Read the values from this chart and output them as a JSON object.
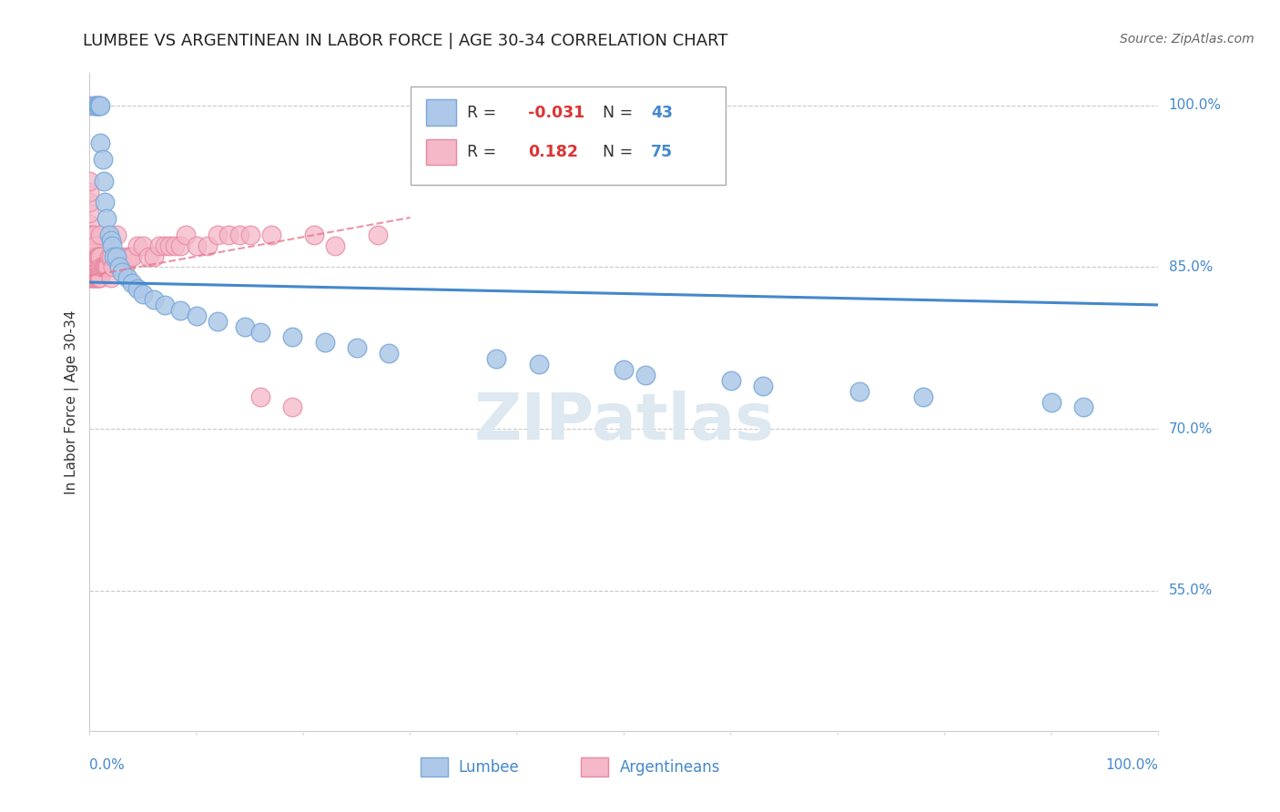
{
  "title": "LUMBEE VS ARGENTINEAN IN LABOR FORCE | AGE 30-34 CORRELATION CHART",
  "source": "Source: ZipAtlas.com",
  "ylabel": "In Labor Force | Age 30-34",
  "ytick_labels": [
    "100.0%",
    "85.0%",
    "70.0%",
    "55.0%"
  ],
  "ytick_values": [
    1.0,
    0.85,
    0.7,
    0.55
  ],
  "xlim": [
    0.0,
    1.0
  ],
  "ylim": [
    0.42,
    1.03
  ],
  "legend_r_lumbee": "-0.031",
  "legend_n_lumbee": "43",
  "legend_r_argent": "0.182",
  "legend_n_argent": "75",
  "lumbee_color": "#adc8e8",
  "argent_color": "#f4b8c8",
  "lumbee_edge": "#7aa8d8",
  "argent_edge": "#e888a0",
  "trendline_lumbee_color": "#4488cc",
  "trendline_argent_color": "#e87890",
  "watermark_color": "#dde8f0",
  "lumbee_x": [
    0.005,
    0.005,
    0.007,
    0.008,
    0.009,
    0.01,
    0.01,
    0.012,
    0.013,
    0.014,
    0.016,
    0.018,
    0.02,
    0.021,
    0.023,
    0.025,
    0.028,
    0.03,
    0.035,
    0.04,
    0.045,
    0.05,
    0.06,
    0.07,
    0.085,
    0.1,
    0.12,
    0.145,
    0.16,
    0.19,
    0.22,
    0.25,
    0.28,
    0.38,
    0.42,
    0.5,
    0.52,
    0.6,
    0.63,
    0.72,
    0.78,
    0.9,
    0.93
  ],
  "lumbee_y": [
    1.0,
    1.0,
    1.0,
    1.0,
    1.0,
    1.0,
    0.965,
    0.95,
    0.93,
    0.91,
    0.895,
    0.88,
    0.875,
    0.87,
    0.86,
    0.86,
    0.85,
    0.845,
    0.84,
    0.835,
    0.83,
    0.825,
    0.82,
    0.815,
    0.81,
    0.805,
    0.8,
    0.795,
    0.79,
    0.785,
    0.78,
    0.775,
    0.77,
    0.765,
    0.76,
    0.755,
    0.75,
    0.745,
    0.74,
    0.735,
    0.73,
    0.725,
    0.72
  ],
  "argent_x": [
    0.0,
    0.0,
    0.0,
    0.0,
    0.0,
    0.0,
    0.0,
    0.0,
    0.0,
    0.0,
    0.0,
    0.0,
    0.001,
    0.001,
    0.002,
    0.002,
    0.003,
    0.003,
    0.004,
    0.004,
    0.005,
    0.005,
    0.005,
    0.006,
    0.006,
    0.007,
    0.007,
    0.008,
    0.008,
    0.009,
    0.009,
    0.01,
    0.01,
    0.01,
    0.011,
    0.012,
    0.013,
    0.014,
    0.015,
    0.016,
    0.017,
    0.018,
    0.02,
    0.02,
    0.022,
    0.025,
    0.025,
    0.028,
    0.03,
    0.033,
    0.035,
    0.038,
    0.04,
    0.045,
    0.05,
    0.055,
    0.06,
    0.065,
    0.07,
    0.075,
    0.08,
    0.085,
    0.09,
    0.1,
    0.11,
    0.12,
    0.13,
    0.14,
    0.15,
    0.16,
    0.17,
    0.19,
    0.21,
    0.23,
    0.27
  ],
  "argent_y": [
    0.84,
    0.85,
    0.86,
    0.87,
    0.875,
    0.88,
    0.89,
    0.9,
    0.91,
    0.92,
    0.93,
    1.0,
    0.84,
    0.87,
    0.84,
    0.88,
    0.84,
    0.87,
    0.84,
    0.86,
    0.84,
    0.86,
    0.88,
    0.84,
    0.87,
    0.84,
    0.86,
    0.84,
    0.86,
    0.84,
    0.86,
    0.84,
    0.86,
    0.88,
    0.85,
    0.85,
    0.85,
    0.85,
    0.85,
    0.85,
    0.85,
    0.86,
    0.84,
    0.86,
    0.85,
    0.86,
    0.88,
    0.85,
    0.86,
    0.85,
    0.86,
    0.86,
    0.86,
    0.87,
    0.87,
    0.86,
    0.86,
    0.87,
    0.87,
    0.87,
    0.87,
    0.87,
    0.88,
    0.87,
    0.87,
    0.88,
    0.88,
    0.88,
    0.88,
    0.73,
    0.88,
    0.72,
    0.88,
    0.87,
    0.88
  ]
}
